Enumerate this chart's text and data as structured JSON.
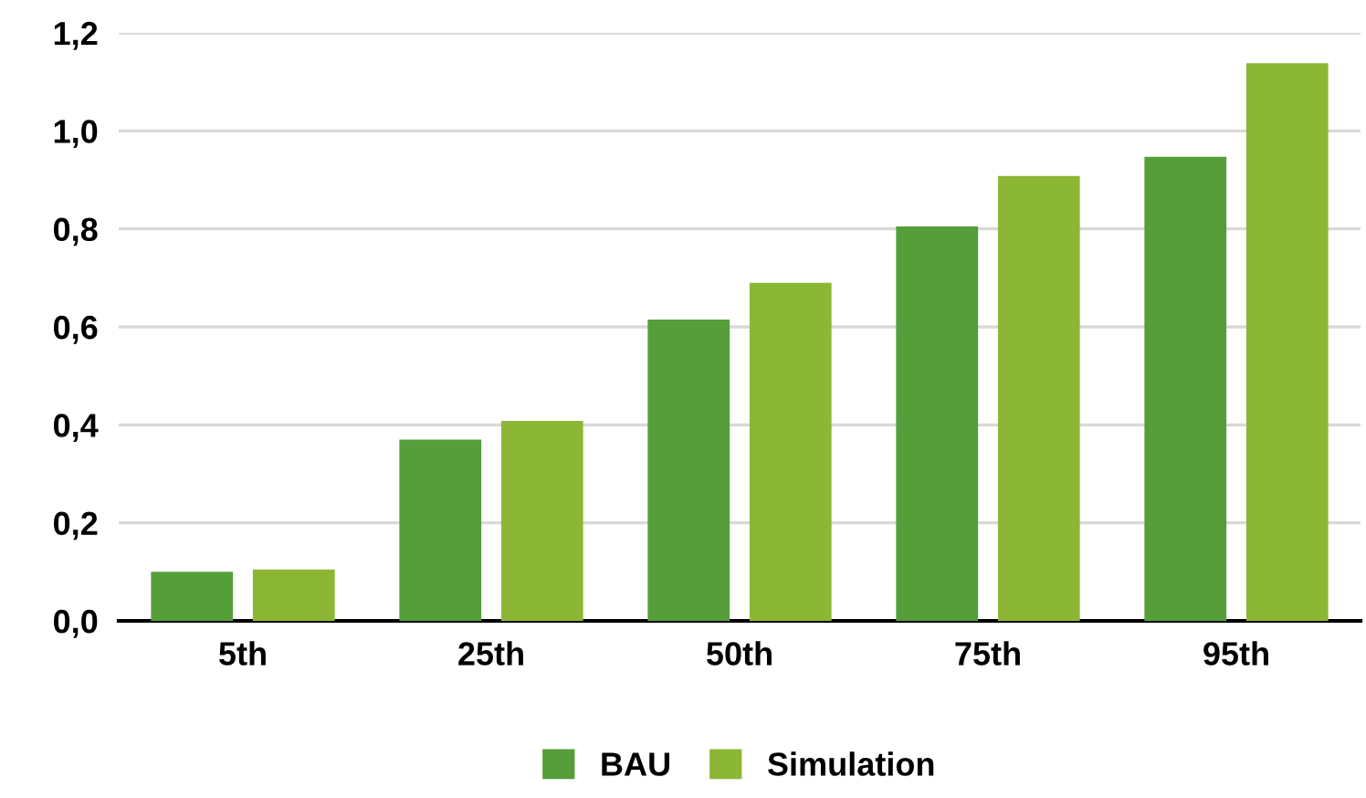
{
  "chart_data": {
    "type": "bar",
    "categories": [
      "5th",
      "25th",
      "50th",
      "75th",
      "95th"
    ],
    "series": [
      {
        "name": "BAU",
        "color": "#559e3a",
        "values": [
          0.1,
          0.37,
          0.615,
          0.805,
          0.947
        ]
      },
      {
        "name": "Simulation",
        "color": "#8cb735",
        "values": [
          0.105,
          0.408,
          0.69,
          0.908,
          1.138
        ]
      }
    ],
    "ylim": [
      0,
      1.2
    ],
    "yticks": [
      {
        "value": 0,
        "label": "0,0"
      },
      {
        "value": 0.2,
        "label": "0,2"
      },
      {
        "value": 0.4,
        "label": "0,4"
      },
      {
        "value": 0.6,
        "label": "0,6"
      },
      {
        "value": 0.8,
        "label": "0,8"
      },
      {
        "value": 1.0,
        "label": "1,0"
      },
      {
        "value": 1.2,
        "label": "1,2"
      }
    ],
    "grid": "y",
    "legend": "bottom"
  }
}
